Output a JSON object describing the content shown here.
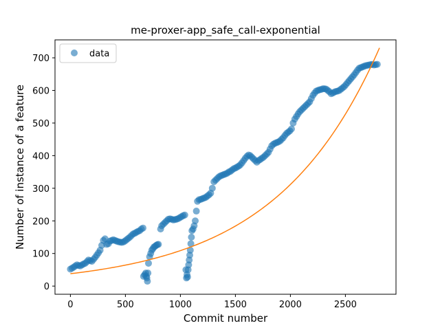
{
  "chart_data": {
    "type": "scatter",
    "title": "me-proxer-app_safe_call-exponential",
    "xlabel": "Commit number",
    "ylabel": "Number of instance of a feature",
    "xlim": [
      -140,
      2960
    ],
    "ylim": [
      -25,
      755
    ],
    "xticks": [
      0,
      500,
      1000,
      1500,
      2000,
      2500
    ],
    "yticks": [
      0,
      100,
      200,
      300,
      400,
      500,
      600,
      700
    ],
    "legend": {
      "position": "top-left",
      "entries": [
        "data"
      ]
    },
    "colors": {
      "data": "#1f77b4",
      "fit": "#ff7f0e"
    },
    "series": [
      {
        "name": "data",
        "kind": "scatter",
        "points": [
          [
            0,
            52
          ],
          [
            15,
            55
          ],
          [
            30,
            58
          ],
          [
            45,
            62
          ],
          [
            60,
            65
          ],
          [
            75,
            63
          ],
          [
            90,
            62
          ],
          [
            105,
            65
          ],
          [
            120,
            68
          ],
          [
            135,
            70
          ],
          [
            150,
            75
          ],
          [
            165,
            80
          ],
          [
            180,
            78
          ],
          [
            195,
            76
          ],
          [
            210,
            82
          ],
          [
            225,
            88
          ],
          [
            240,
            95
          ],
          [
            255,
            102
          ],
          [
            270,
            110
          ],
          [
            285,
            125
          ],
          [
            300,
            140
          ],
          [
            315,
            145
          ],
          [
            330,
            128
          ],
          [
            345,
            130
          ],
          [
            360,
            138
          ],
          [
            375,
            140
          ],
          [
            390,
            142
          ],
          [
            405,
            140
          ],
          [
            420,
            138
          ],
          [
            435,
            136
          ],
          [
            450,
            135
          ],
          [
            465,
            134
          ],
          [
            480,
            135
          ],
          [
            495,
            138
          ],
          [
            510,
            142
          ],
          [
            525,
            146
          ],
          [
            540,
            150
          ],
          [
            555,
            155
          ],
          [
            570,
            160
          ],
          [
            585,
            162
          ],
          [
            600,
            165
          ],
          [
            615,
            168
          ],
          [
            630,
            170
          ],
          [
            645,
            175
          ],
          [
            660,
            178
          ],
          [
            665,
            30
          ],
          [
            675,
            35
          ],
          [
            685,
            40
          ],
          [
            690,
            30
          ],
          [
            695,
            25
          ],
          [
            700,
            15
          ],
          [
            705,
            40
          ],
          [
            710,
            70
          ],
          [
            720,
            90
          ],
          [
            730,
            100
          ],
          [
            740,
            110
          ],
          [
            750,
            115
          ],
          [
            760,
            120
          ],
          [
            770,
            122
          ],
          [
            780,
            125
          ],
          [
            790,
            127
          ],
          [
            800,
            128
          ],
          [
            820,
            175
          ],
          [
            830,
            185
          ],
          [
            845,
            190
          ],
          [
            860,
            195
          ],
          [
            875,
            200
          ],
          [
            890,
            205
          ],
          [
            905,
            206
          ],
          [
            920,
            205
          ],
          [
            935,
            203
          ],
          [
            950,
            204
          ],
          [
            965,
            205
          ],
          [
            980,
            207
          ],
          [
            995,
            210
          ],
          [
            1010,
            213
          ],
          [
            1025,
            216
          ],
          [
            1040,
            218
          ],
          [
            1050,
            50
          ],
          [
            1055,
            25
          ],
          [
            1060,
            35
          ],
          [
            1065,
            28
          ],
          [
            1070,
            50
          ],
          [
            1075,
            65
          ],
          [
            1080,
            80
          ],
          [
            1085,
            95
          ],
          [
            1090,
            110
          ],
          [
            1095,
            130
          ],
          [
            1100,
            150
          ],
          [
            1105,
            170
          ],
          [
            1115,
            175
          ],
          [
            1125,
            185
          ],
          [
            1135,
            200
          ],
          [
            1145,
            230
          ],
          [
            1155,
            260
          ],
          [
            1170,
            265
          ],
          [
            1185,
            266
          ],
          [
            1200,
            268
          ],
          [
            1215,
            270
          ],
          [
            1230,
            272
          ],
          [
            1245,
            276
          ],
          [
            1260,
            280
          ],
          [
            1275,
            285
          ],
          [
            1290,
            300
          ],
          [
            1305,
            320
          ],
          [
            1320,
            325
          ],
          [
            1335,
            330
          ],
          [
            1350,
            335
          ],
          [
            1365,
            338
          ],
          [
            1380,
            340
          ],
          [
            1395,
            342
          ],
          [
            1410,
            344
          ],
          [
            1425,
            346
          ],
          [
            1440,
            350
          ],
          [
            1455,
            352
          ],
          [
            1470,
            356
          ],
          [
            1485,
            360
          ],
          [
            1500,
            362
          ],
          [
            1515,
            365
          ],
          [
            1530,
            368
          ],
          [
            1545,
            372
          ],
          [
            1560,
            378
          ],
          [
            1575,
            385
          ],
          [
            1590,
            392
          ],
          [
            1605,
            398
          ],
          [
            1620,
            402
          ],
          [
            1635,
            400
          ],
          [
            1650,
            395
          ],
          [
            1665,
            390
          ],
          [
            1680,
            385
          ],
          [
            1695,
            380
          ],
          [
            1710,
            385
          ],
          [
            1725,
            388
          ],
          [
            1740,
            392
          ],
          [
            1755,
            395
          ],
          [
            1770,
            400
          ],
          [
            1785,
            405
          ],
          [
            1800,
            410
          ],
          [
            1815,
            420
          ],
          [
            1830,
            430
          ],
          [
            1845,
            435
          ],
          [
            1860,
            438
          ],
          [
            1875,
            440
          ],
          [
            1890,
            442
          ],
          [
            1905,
            445
          ],
          [
            1920,
            450
          ],
          [
            1935,
            455
          ],
          [
            1950,
            462
          ],
          [
            1965,
            468
          ],
          [
            1980,
            472
          ],
          [
            1995,
            476
          ],
          [
            2010,
            482
          ],
          [
            2025,
            500
          ],
          [
            2040,
            512
          ],
          [
            2055,
            520
          ],
          [
            2070,
            528
          ],
          [
            2085,
            535
          ],
          [
            2100,
            540
          ],
          [
            2115,
            545
          ],
          [
            2130,
            550
          ],
          [
            2145,
            555
          ],
          [
            2160,
            560
          ],
          [
            2175,
            565
          ],
          [
            2190,
            575
          ],
          [
            2205,
            585
          ],
          [
            2220,
            592
          ],
          [
            2235,
            598
          ],
          [
            2250,
            600
          ],
          [
            2265,
            602
          ],
          [
            2280,
            603
          ],
          [
            2295,
            605
          ],
          [
            2310,
            605
          ],
          [
            2325,
            604
          ],
          [
            2340,
            600
          ],
          [
            2355,
            596
          ],
          [
            2370,
            590
          ],
          [
            2385,
            592
          ],
          [
            2400,
            595
          ],
          [
            2415,
            597
          ],
          [
            2430,
            598
          ],
          [
            2445,
            600
          ],
          [
            2460,
            604
          ],
          [
            2475,
            608
          ],
          [
            2490,
            612
          ],
          [
            2505,
            618
          ],
          [
            2520,
            624
          ],
          [
            2535,
            630
          ],
          [
            2550,
            636
          ],
          [
            2565,
            642
          ],
          [
            2580,
            648
          ],
          [
            2595,
            655
          ],
          [
            2610,
            662
          ],
          [
            2625,
            668
          ],
          [
            2640,
            670
          ],
          [
            2655,
            672
          ],
          [
            2670,
            674
          ],
          [
            2685,
            676
          ],
          [
            2700,
            677
          ],
          [
            2715,
            678
          ],
          [
            2730,
            679
          ],
          [
            2745,
            680
          ],
          [
            2760,
            678
          ],
          [
            2775,
            679
          ],
          [
            2790,
            680
          ]
        ]
      },
      {
        "name": "",
        "kind": "line",
        "model": {
          "a": 38,
          "b": 0.001052,
          "xmin": 0,
          "xmax": 2810
        }
      }
    ]
  }
}
